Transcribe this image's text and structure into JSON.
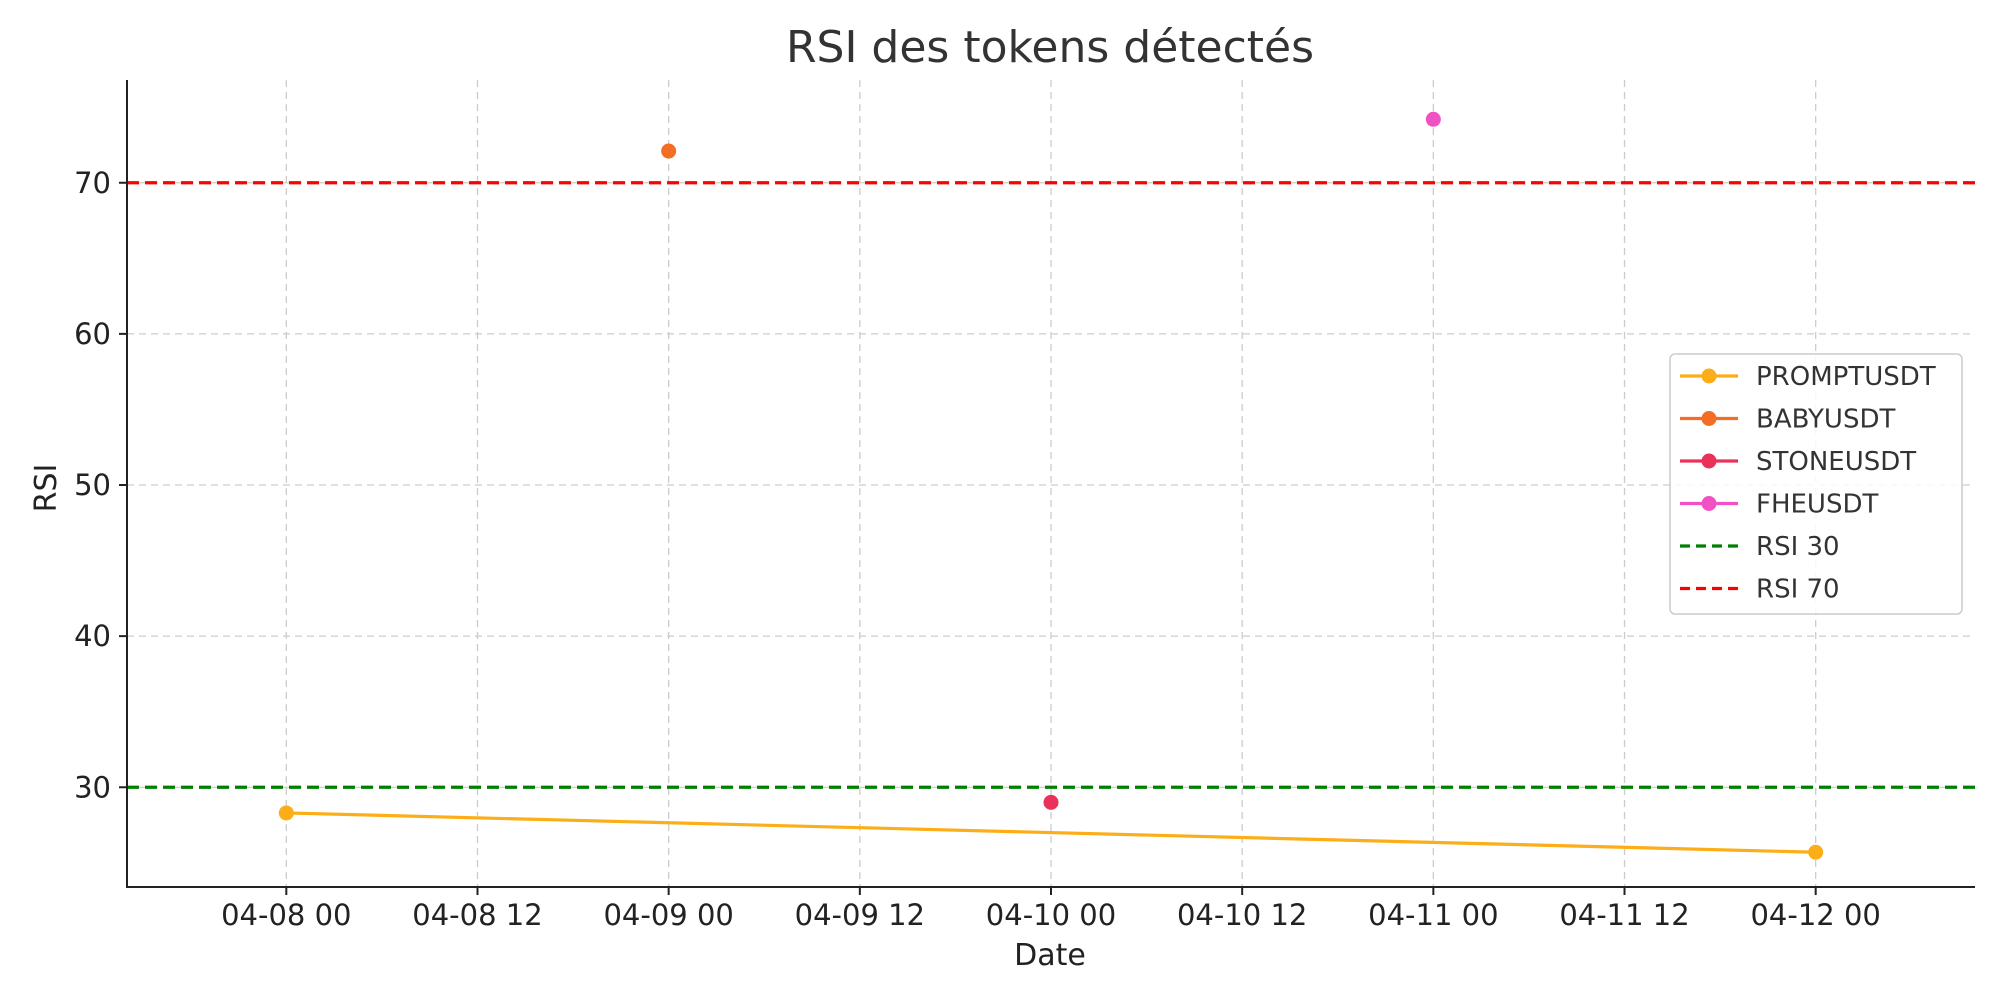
{
  "chart_data": {
    "type": "line",
    "title": "RSI des tokens détectés",
    "xlabel": "Date",
    "ylabel": "RSI",
    "x_type": "datetime",
    "xlim": [
      "2025-04-07T14:00",
      "2025-04-12T10:00"
    ],
    "ylim": [
      23.4,
      76.8
    ],
    "x_ticks": [
      {
        "value": "2025-04-08T00:00",
        "label": "04-08 00"
      },
      {
        "value": "2025-04-08T12:00",
        "label": "04-08 12"
      },
      {
        "value": "2025-04-09T00:00",
        "label": "04-09 00"
      },
      {
        "value": "2025-04-09T12:00",
        "label": "04-09 12"
      },
      {
        "value": "2025-04-10T00:00",
        "label": "04-10 00"
      },
      {
        "value": "2025-04-10T12:00",
        "label": "04-10 12"
      },
      {
        "value": "2025-04-11T00:00",
        "label": "04-11 00"
      },
      {
        "value": "2025-04-11T12:00",
        "label": "04-11 12"
      },
      {
        "value": "2025-04-12T00:00",
        "label": "04-12 00"
      }
    ],
    "y_ticks": [
      {
        "value": 30,
        "label": "30"
      },
      {
        "value": 40,
        "label": "40"
      },
      {
        "value": 50,
        "label": "50"
      },
      {
        "value": 60,
        "label": "60"
      },
      {
        "value": 70,
        "label": "70"
      }
    ],
    "grid": true,
    "legend_position": "center-right",
    "series": [
      {
        "name": "PROMPTUSDT",
        "color": "#fbae17",
        "marker": "circle",
        "line": "solid",
        "points": [
          {
            "x": "2025-04-08T00:00",
            "y": 28.3
          },
          {
            "x": "2025-04-12T00:00",
            "y": 25.7
          }
        ]
      },
      {
        "name": "BABYUSDT",
        "color": "#f46d25",
        "marker": "circle",
        "line": "solid",
        "points": [
          {
            "x": "2025-04-09T00:00",
            "y": 72.1
          }
        ]
      },
      {
        "name": "STONEUSDT",
        "color": "#ea3159",
        "marker": "circle",
        "line": "solid",
        "points": [
          {
            "x": "2025-04-10T00:00",
            "y": 29.0
          }
        ]
      },
      {
        "name": "FHEUSDT",
        "color": "#f052c3",
        "marker": "circle",
        "line": "solid",
        "points": [
          {
            "x": "2025-04-11T00:00",
            "y": 74.2
          }
        ]
      }
    ],
    "reference_lines": [
      {
        "name": "RSI 30",
        "y": 30,
        "color": "#008000",
        "style": "dashed"
      },
      {
        "name": "RSI 70",
        "y": 70,
        "color": "#ff0000",
        "style": "dashed"
      }
    ]
  }
}
